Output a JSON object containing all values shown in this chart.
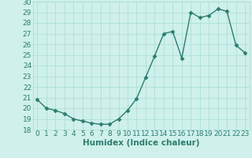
{
  "x": [
    0,
    1,
    2,
    3,
    4,
    5,
    6,
    7,
    8,
    9,
    10,
    11,
    12,
    13,
    14,
    15,
    16,
    17,
    18,
    19,
    20,
    21,
    22,
    23
  ],
  "y": [
    20.8,
    20.0,
    19.8,
    19.5,
    19.0,
    18.8,
    18.6,
    18.5,
    18.5,
    19.0,
    19.8,
    20.9,
    22.9,
    24.9,
    27.0,
    27.2,
    24.7,
    29.0,
    28.5,
    28.7,
    29.3,
    29.1,
    25.9,
    25.2
  ],
  "line_color": "#2d7d6e",
  "marker": "D",
  "marker_size": 2.5,
  "bg_color": "#cff0eb",
  "grid_color": "#a8ddd6",
  "xlabel": "Humidex (Indice chaleur)",
  "ylim": [
    18,
    30
  ],
  "xlim": [
    -0.5,
    23.5
  ],
  "yticks": [
    18,
    19,
    20,
    21,
    22,
    23,
    24,
    25,
    26,
    27,
    28,
    29,
    30
  ],
  "xticks": [
    0,
    1,
    2,
    3,
    4,
    5,
    6,
    7,
    8,
    9,
    10,
    11,
    12,
    13,
    14,
    15,
    16,
    17,
    18,
    19,
    20,
    21,
    22,
    23
  ],
  "xlabel_fontsize": 7.5,
  "tick_fontsize": 6.5,
  "linewidth": 1.0
}
